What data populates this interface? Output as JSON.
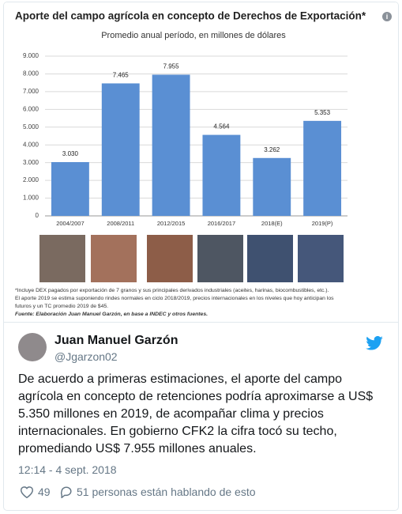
{
  "chart_data": {
    "type": "bar",
    "title": "Aporte del campo agrícola en concepto de Derechos de Exportación*",
    "subtitle": "Promedio anual período, en millones de dólares",
    "categories": [
      "2004/2007",
      "2008/2011",
      "2012/2015",
      "2016/2017",
      "2018(E)",
      "2019(P)"
    ],
    "values": [
      3030,
      7465,
      7955,
      4564,
      3262,
      5353
    ],
    "value_labels": [
      "3.030",
      "7.465",
      "7.955",
      "4.564",
      "3.262",
      "5.353"
    ],
    "color": "#5a8fd3",
    "ylim": [
      0,
      9000
    ],
    "yticks": [
      0,
      {
        "value": 1000,
        "label": "1.000"
      },
      {
        "value": 2000,
        "label": "2.000"
      },
      {
        "value": 3000,
        "label": "3.000"
      },
      {
        "value": 4000,
        "label": "4.000"
      },
      {
        "value": 5000,
        "label": "5.000"
      },
      {
        "value": 6000,
        "label": "6.000"
      },
      {
        "value": 7000,
        "label": "7.000"
      },
      {
        "value": 8000,
        "label": "8.000"
      },
      {
        "value": 9000,
        "label": "9.000"
      }
    ],
    "grid": true,
    "notes": [
      "*Incluye DEX pagados por exportación de 7 granos y sus principales derivados industriales (aceites, harinas, biocombustibles, etc.).",
      "El aporte 2019 se estima suponiendo rindes normales en ciclo 2018/2019, precios internacionales en los niveles que hoy anticipan los",
      "futuros y un TC promedio 2019 de $45."
    ],
    "source": "Fuente: Elaboración Juan Manuel Garzón, en base a INDEC y otros fuentes."
  },
  "tweet": {
    "name": "Juan Manuel Garzón",
    "handle": "@Jgarzon02",
    "text": "De acuerdo a primeras estimaciones, el aporte del campo agrícola en concepto de retenciones podría aproximarse a US$ 5.350 millones en 2019, de acompañar clima y precios internacionales. En gobierno CFK2 la cifra tocó su techo, promediando US$ 7.955 millones anuales.",
    "time": "12:14 - 4 sept. 2018",
    "likes": 49,
    "conversation": "51 personas están hablando de esto"
  }
}
